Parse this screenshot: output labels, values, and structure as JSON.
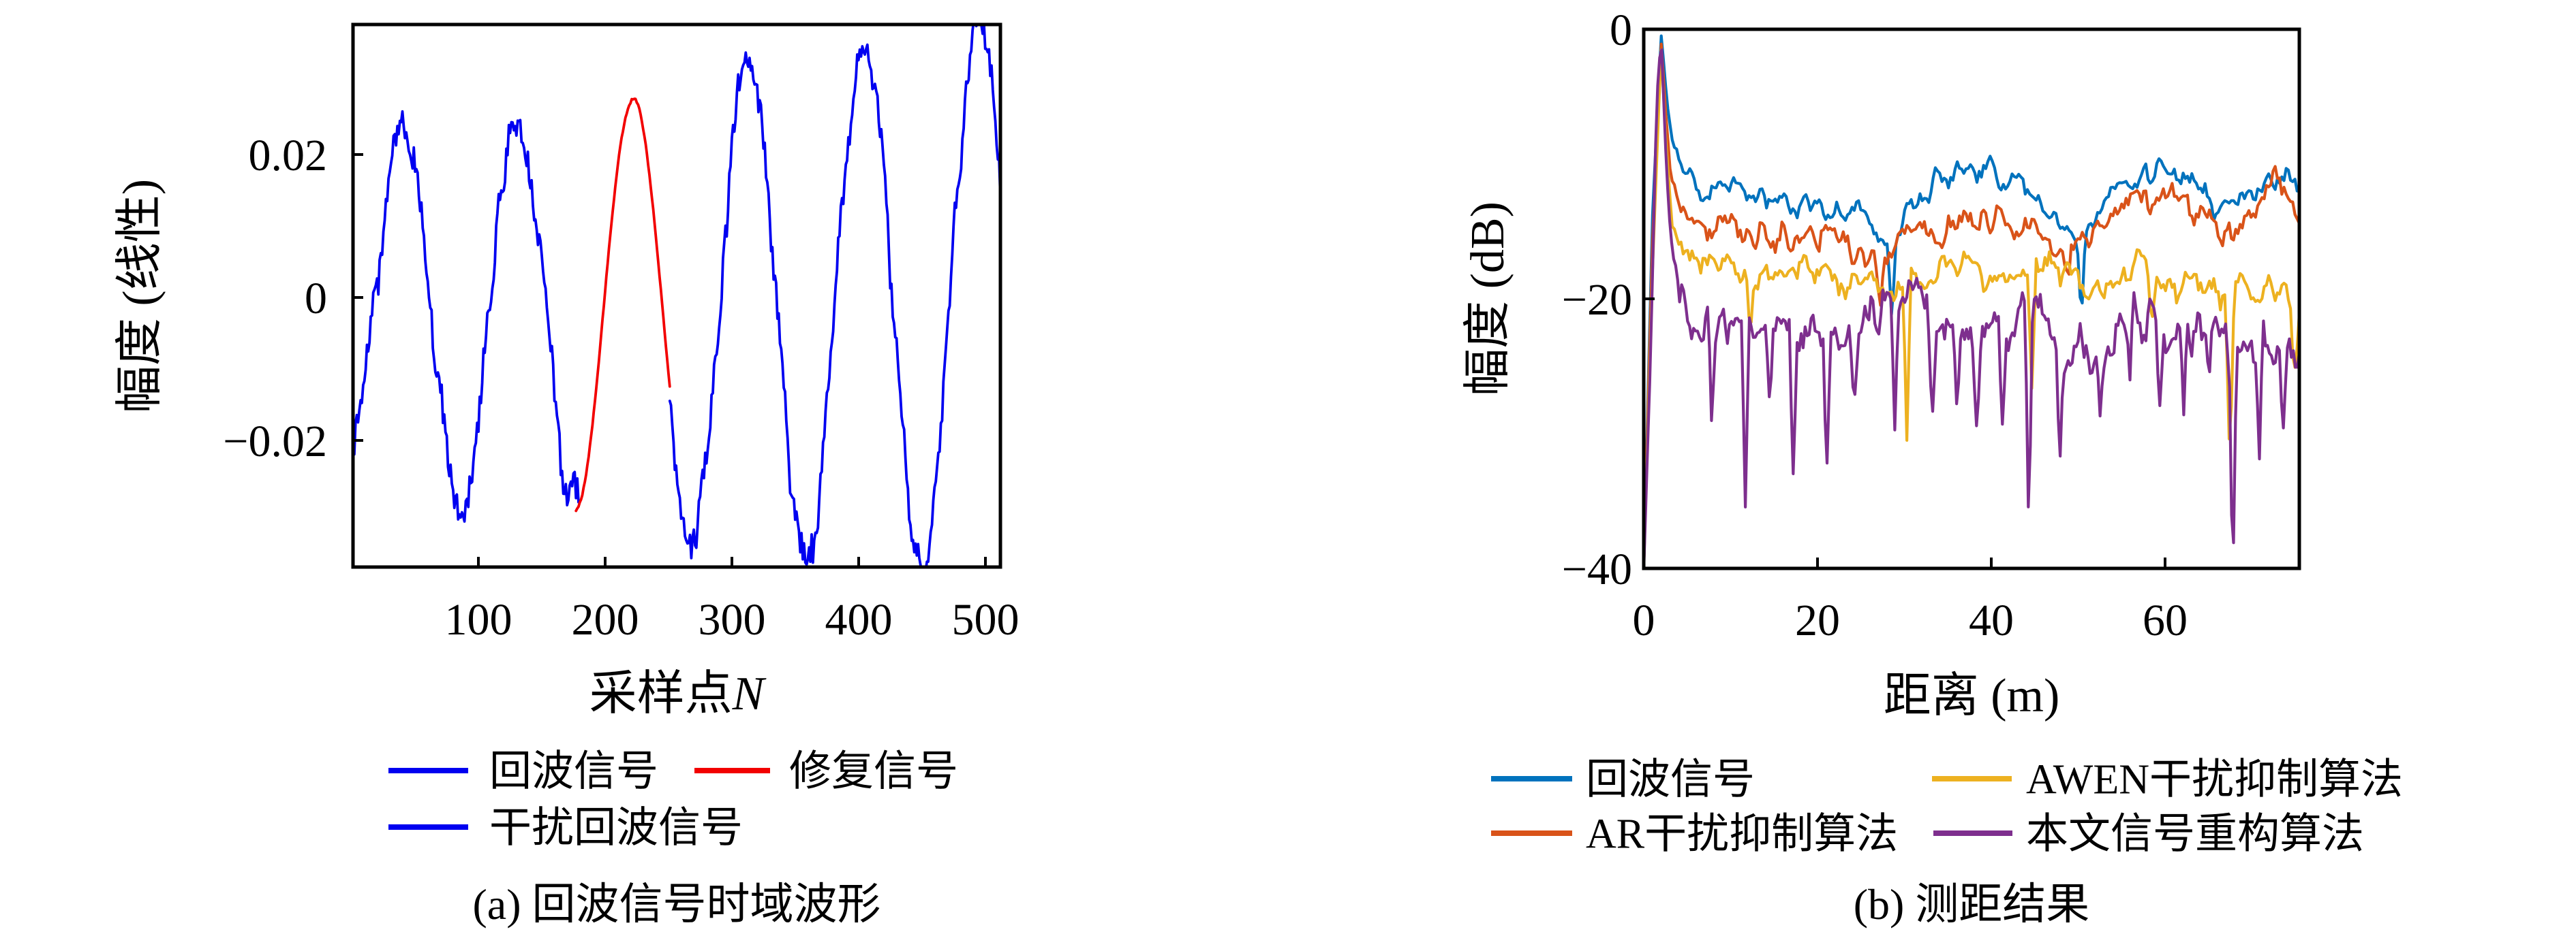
{
  "figure": {
    "background": "#ffffff"
  },
  "chart_data": [
    {
      "type": "line",
      "title": "(a) 回波信号时域波形",
      "xlabel": "采样点",
      "xlabel_var": "N",
      "ylabel": "幅度 (线性)",
      "xlim": [
        1,
        512
      ],
      "ylim": [
        -0.0377,
        0.0382
      ],
      "grid": false,
      "legend_position": "below",
      "xticks": [
        {
          "v": 100,
          "label": "100"
        },
        {
          "v": 200,
          "label": "200"
        },
        {
          "v": 300,
          "label": "300"
        },
        {
          "v": 400,
          "label": "400"
        },
        {
          "v": 500,
          "label": "500"
        }
      ],
      "yticks": [
        {
          "v": 0.02,
          "label": "0.02"
        },
        {
          "v": 0,
          "label": "0"
        },
        {
          "v": -0.02,
          "label": "−0.02"
        }
      ],
      "series": [
        {
          "name": "回波信号",
          "color": "#0000F0",
          "model": "sine",
          "sine": {
            "period": 91,
            "x_zero": 17.25,
            "amp0": 0.0228,
            "amp_slope": 3.45e-05,
            "dc": -0.001
          },
          "segments": [
            [
              1,
              179
            ],
            [
              251,
              512
            ]
          ],
          "step": 1,
          "noise": {
            "wl": 5,
            "amp": 0.003,
            "wl2": 16,
            "amp2": 0.0017,
            "jitter": 0.002,
            "seed": 55
          }
        },
        {
          "name": "修复信号",
          "color": "#F20000",
          "model": "sine",
          "sine": {
            "period": 92,
            "x_zero": 199,
            "amp0": 0.0288,
            "amp_slope": 0,
            "dc": -0.0008
          },
          "segments": [
            [
              177,
              251
            ]
          ],
          "step": 1,
          "noise": {
            "wl": 8,
            "amp": 0.0004,
            "wl2": 25,
            "amp2": 0.0003,
            "jitter": 0.00015,
            "seed": 77
          }
        },
        {
          "name": "干扰回波信号",
          "color": "#0000F0",
          "legend_only": true
        }
      ]
    },
    {
      "type": "line",
      "title": "(b) 测距结果",
      "xlabel": "距离 (m)",
      "ylabel": "幅度 (dB)",
      "xlim": [
        0,
        75.5
      ],
      "ylim": [
        -40,
        0
      ],
      "grid": false,
      "legend_position": "below",
      "xticks": [
        {
          "v": 0,
          "label": "0"
        },
        {
          "v": 20,
          "label": "20"
        },
        {
          "v": 40,
          "label": "40"
        },
        {
          "v": 60,
          "label": "60"
        }
      ],
      "yticks": [
        {
          "v": 0,
          "label": "0"
        },
        {
          "v": -20,
          "label": "−20"
        },
        {
          "v": -40,
          "label": "−40"
        }
      ],
      "series": [
        {
          "name": "回波信号",
          "color": "#0072BD",
          "model": "anchors",
          "n": 300,
          "anchors": [
            [
              0,
              -40
            ],
            [
              1,
              -14
            ],
            [
              2,
              -0.4
            ],
            [
              2.6,
              -5
            ],
            [
              3.2,
              -8.5
            ],
            [
              4,
              -10.3
            ],
            [
              6,
              -11.3
            ],
            [
              9,
              -11.6
            ],
            [
              12,
              -11.8
            ],
            [
              15,
              -12.2
            ],
            [
              18,
              -12.6
            ],
            [
              21,
              -13.2
            ],
            [
              24,
              -13.8
            ],
            [
              26,
              -14.3
            ],
            [
              28.5,
              -15.8
            ],
            [
              30,
              -13.6
            ],
            [
              32,
              -12
            ],
            [
              34,
              -11
            ],
            [
              36,
              -10.5
            ],
            [
              38,
              -10.4
            ],
            [
              40,
              -10.6
            ],
            [
              42,
              -11
            ],
            [
              44,
              -11.8
            ],
            [
              46,
              -13
            ],
            [
              48,
              -14.3
            ],
            [
              50,
              -15.3
            ],
            [
              51.5,
              -14.3
            ],
            [
              53,
              -12.6
            ],
            [
              55,
              -11.4
            ],
            [
              57,
              -10.7
            ],
            [
              59,
              -10.5
            ],
            [
              61,
              -10.7
            ],
            [
              63,
              -11.3
            ],
            [
              65,
              -12.6
            ],
            [
              66.5,
              -13.8
            ],
            [
              68,
              -13
            ],
            [
              70,
              -11.6
            ],
            [
              72,
              -10.9
            ],
            [
              74,
              -11
            ],
            [
              75.5,
              -12.2
            ]
          ],
          "spikes": [
            [
              28.6,
              -6.5
            ],
            [
              50.4,
              -7
            ]
          ],
          "spike_w": 0.5,
          "noise": {
            "wl": 0.8,
            "amp": 0.95,
            "wl2": 2.8,
            "amp2": 0.5,
            "jitter": 0.45,
            "seed": 101
          }
        },
        {
          "name": "AR干扰抑制算法",
          "color": "#D95319",
          "model": "anchors",
          "n": 300,
          "anchors": [
            [
              0,
              -40
            ],
            [
              1,
              -16
            ],
            [
              2,
              -0.8
            ],
            [
              2.6,
              -7
            ],
            [
              3.2,
              -11
            ],
            [
              4,
              -13
            ],
            [
              6,
              -14
            ],
            [
              9,
              -14.6
            ],
            [
              12,
              -15
            ],
            [
              15,
              -15.4
            ],
            [
              18,
              -15.2
            ],
            [
              21,
              -15.6
            ],
            [
              24,
              -16.2
            ],
            [
              26.5,
              -17
            ],
            [
              28.5,
              -16.4
            ],
            [
              31,
              -15.4
            ],
            [
              33,
              -14.8
            ],
            [
              35,
              -14.4
            ],
            [
              37,
              -14.1
            ],
            [
              39,
              -14.3
            ],
            [
              41,
              -14.6
            ],
            [
              43,
              -15
            ],
            [
              45,
              -15.6
            ],
            [
              47,
              -16.2
            ],
            [
              49,
              -16.4
            ],
            [
              51,
              -15.6
            ],
            [
              53,
              -14.4
            ],
            [
              55,
              -13.2
            ],
            [
              57,
              -12.6
            ],
            [
              59,
              -12.3
            ],
            [
              61,
              -12.4
            ],
            [
              63,
              -13
            ],
            [
              65,
              -14.2
            ],
            [
              66.8,
              -15.2
            ],
            [
              68.5,
              -13.8
            ],
            [
              70,
              -12.6
            ],
            [
              72,
              -11.6
            ],
            [
              73.5,
              -11.2
            ],
            [
              75.5,
              -14.5
            ]
          ],
          "spikes": [
            [
              27.2,
              -3.5
            ],
            [
              48.8,
              -3
            ]
          ],
          "spike_w": 0.5,
          "noise": {
            "wl": 0.8,
            "amp": 1.15,
            "wl2": 3.1,
            "amp2": 0.6,
            "jitter": 0.5,
            "seed": 202
          }
        },
        {
          "name": "AWEN干扰抑制算法",
          "color": "#EDB120",
          "model": "anchors",
          "n": 300,
          "anchors": [
            [
              0,
              -40
            ],
            [
              1,
              -18
            ],
            [
              2,
              -1.2
            ],
            [
              2.6,
              -9
            ],
            [
              3.2,
              -13.5
            ],
            [
              4,
              -15.5
            ],
            [
              6,
              -16.8
            ],
            [
              9,
              -17.8
            ],
            [
              12,
              -18.6
            ],
            [
              15,
              -18.2
            ],
            [
              18,
              -17.8
            ],
            [
              21,
              -17.6
            ],
            [
              24,
              -18.4
            ],
            [
              27,
              -19.2
            ],
            [
              30,
              -18.8
            ],
            [
              33,
              -17.8
            ],
            [
              36,
              -17.6
            ],
            [
              39,
              -18
            ],
            [
              42,
              -18.8
            ],
            [
              45,
              -18.4
            ],
            [
              48,
              -18
            ],
            [
              51,
              -19.2
            ],
            [
              54,
              -18.8
            ],
            [
              57,
              -17.8
            ],
            [
              60,
              -18.2
            ],
            [
              63,
              -19
            ],
            [
              66,
              -19.8
            ],
            [
              68,
              -19.4
            ],
            [
              70,
              -19
            ],
            [
              72,
              -19.8
            ],
            [
              74,
              -20.5
            ],
            [
              75.5,
              -21.5
            ]
          ],
          "spikes": [
            [
              12.2,
              -5
            ],
            [
              30.3,
              -12
            ],
            [
              44.7,
              -9.5
            ],
            [
              58.5,
              -4
            ],
            [
              67.5,
              -13.5
            ],
            [
              74.9,
              -5
            ]
          ],
          "spike_w": 0.5,
          "noise": {
            "wl": 0.8,
            "amp": 1.1,
            "wl2": 3.4,
            "amp2": 0.65,
            "jitter": 0.55,
            "seed": 303
          }
        },
        {
          "name": "本文信号重构算法",
          "color": "#7E2F8E",
          "model": "anchors",
          "n": 330,
          "anchors": [
            [
              0,
              -40
            ],
            [
              0.8,
              -24
            ],
            [
              1.5,
              -5
            ],
            [
              2,
              -0.3
            ],
            [
              2.6,
              -10
            ],
            [
              3.2,
              -16.5
            ],
            [
              4,
              -19.5
            ],
            [
              5.5,
              -21
            ],
            [
              8,
              -21.8
            ],
            [
              11,
              -22.6
            ],
            [
              14,
              -22.2
            ],
            [
              17,
              -22.8
            ],
            [
              20,
              -23.2
            ],
            [
              23,
              -22.8
            ],
            [
              26,
              -22.4
            ],
            [
              28.5,
              -21.6
            ],
            [
              30.5,
              -20.4
            ],
            [
              32.5,
              -21.6
            ],
            [
              35,
              -22.8
            ],
            [
              38,
              -23.2
            ],
            [
              41,
              -22.8
            ],
            [
              44,
              -22
            ],
            [
              46,
              -21.2
            ],
            [
              48,
              -22.6
            ],
            [
              51,
              -23.2
            ],
            [
              53.5,
              -22.4
            ],
            [
              56,
              -21.4
            ],
            [
              58.5,
              -22
            ],
            [
              61,
              -22.8
            ],
            [
              63.5,
              -23.2
            ],
            [
              66,
              -22.6
            ],
            [
              68.5,
              -22.2
            ],
            [
              71,
              -23
            ],
            [
              73,
              -23.6
            ],
            [
              75.5,
              -24.5
            ]
          ],
          "spikes": [
            [
              7.8,
              -8
            ],
            [
              11.7,
              -14
            ],
            [
              14.5,
              -7
            ],
            [
              17.2,
              -10
            ],
            [
              21.1,
              -7.5
            ],
            [
              24.2,
              -6.5
            ],
            [
              28.9,
              -9
            ],
            [
              33.2,
              -8
            ],
            [
              36.1,
              -6.5
            ],
            [
              38.4,
              -6
            ],
            [
              41.3,
              -6.5
            ],
            [
              44.35,
              -18.5
            ],
            [
              47.9,
              -8.5
            ],
            [
              52.6,
              -6
            ],
            [
              56,
              -5.5
            ],
            [
              59.4,
              -6.5
            ],
            [
              62.2,
              -7.5
            ],
            [
              65.1,
              -5.5
            ],
            [
              67.85,
              -17.5
            ],
            [
              70.9,
              -9
            ],
            [
              73.6,
              -7.5
            ]
          ],
          "spike_w": 0.45,
          "noise": {
            "wl": 0.75,
            "amp": 1.7,
            "wl2": 2.6,
            "amp2": 0.9,
            "jitter": 0.8,
            "seed": 404
          }
        }
      ]
    }
  ]
}
